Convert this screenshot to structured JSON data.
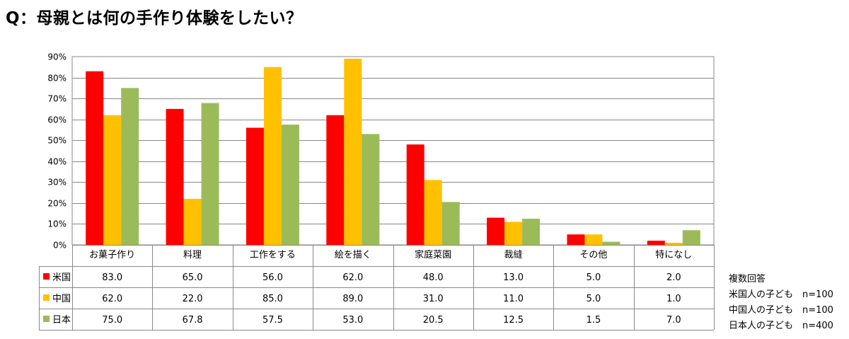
{
  "title": "Q：母親とは何の手作り体験をしたい？",
  "chart_data": {
    "type": "bar",
    "categories": [
      "お菓子作り",
      "料理",
      "工作をする",
      "絵を描く",
      "家庭菜園",
      "裁縫",
      "その他",
      "特になし"
    ],
    "series": [
      {
        "name": "米国",
        "color": "#FF0000",
        "values": [
          83.0,
          65.0,
          56.0,
          62.0,
          48.0,
          13.0,
          5.0,
          2.0
        ]
      },
      {
        "name": "中国",
        "color": "#FFC000",
        "values": [
          62.0,
          22.0,
          85.0,
          89.0,
          31.0,
          11.0,
          5.0,
          1.0
        ]
      },
      {
        "name": "日本",
        "color": "#9BBB59",
        "values": [
          75.0,
          67.8,
          57.5,
          53.0,
          20.5,
          12.5,
          1.5,
          7.0
        ]
      }
    ],
    "yticks": [
      "0%",
      "10%",
      "20%",
      "30%",
      "40%",
      "50%",
      "60%",
      "70%",
      "80%",
      "90%"
    ],
    "ylim": [
      0,
      90
    ],
    "grid": true,
    "data_table": true
  },
  "notes": {
    "heading": "複数回答",
    "lines": [
      "米国人の子ども　n=100",
      "中国人の子ども　n=100",
      "日本人の子ども　n=400"
    ]
  }
}
